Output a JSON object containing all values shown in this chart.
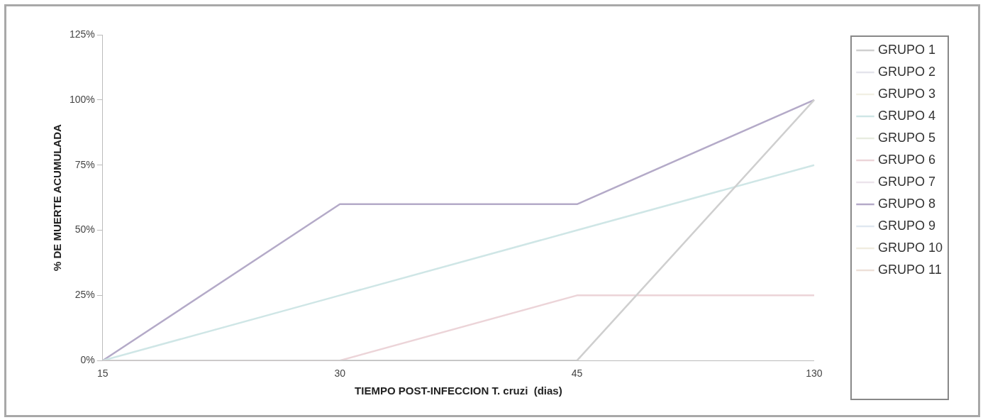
{
  "chart_data": {
    "type": "line",
    "xlabel": "TIEMPO POST-INFECCION T. cruzi  (dias)",
    "ylabel": "% DE MUERTE ACUMULADA",
    "categories": [
      "15",
      "30",
      "45",
      "130"
    ],
    "ylim": [
      0,
      125
    ],
    "yticks": [
      {
        "value": 0,
        "label": "0%"
      },
      {
        "value": 25,
        "label": "25%"
      },
      {
        "value": 50,
        "label": "50%"
      },
      {
        "value": 75,
        "label": "75%"
      },
      {
        "value": 100,
        "label": "100%"
      },
      {
        "value": 125,
        "label": "125%"
      }
    ],
    "grid": false,
    "legend": "right",
    "marker": "none",
    "line_style": "solid",
    "series": [
      {
        "name": "GRUPO 1",
        "color": "#cfcfcf",
        "values": [
          0,
          0,
          0,
          100
        ]
      },
      {
        "name": "GRUPO 2",
        "color": "#e4e4ec",
        "values": [
          null,
          null,
          null,
          null
        ]
      },
      {
        "name": "GRUPO 3",
        "color": "#f2f0e4",
        "values": [
          null,
          null,
          null,
          null
        ]
      },
      {
        "name": "GRUPO 4",
        "color": "#cfe6e6",
        "values": [
          0,
          25,
          50,
          75
        ]
      },
      {
        "name": "GRUPO 5",
        "color": "#e8ece0",
        "values": [
          null,
          null,
          null,
          null
        ]
      },
      {
        "name": "GRUPO 6",
        "color": "#ecd4d8",
        "values": [
          0,
          0,
          25,
          25
        ]
      },
      {
        "name": "GRUPO 7",
        "color": "#ece4ec",
        "values": [
          null,
          null,
          null,
          null
        ]
      },
      {
        "name": "GRUPO 8",
        "color": "#b4aac8",
        "values": [
          0,
          60,
          60,
          100
        ]
      },
      {
        "name": "GRUPO 9",
        "color": "#e0e8f0",
        "values": [
          null,
          null,
          null,
          null
        ]
      },
      {
        "name": "GRUPO 10",
        "color": "#f0ece0",
        "values": [
          null,
          null,
          null,
          null
        ]
      },
      {
        "name": "GRUPO 11",
        "color": "#ede0d8",
        "values": [
          null,
          null,
          null,
          null
        ]
      }
    ]
  }
}
